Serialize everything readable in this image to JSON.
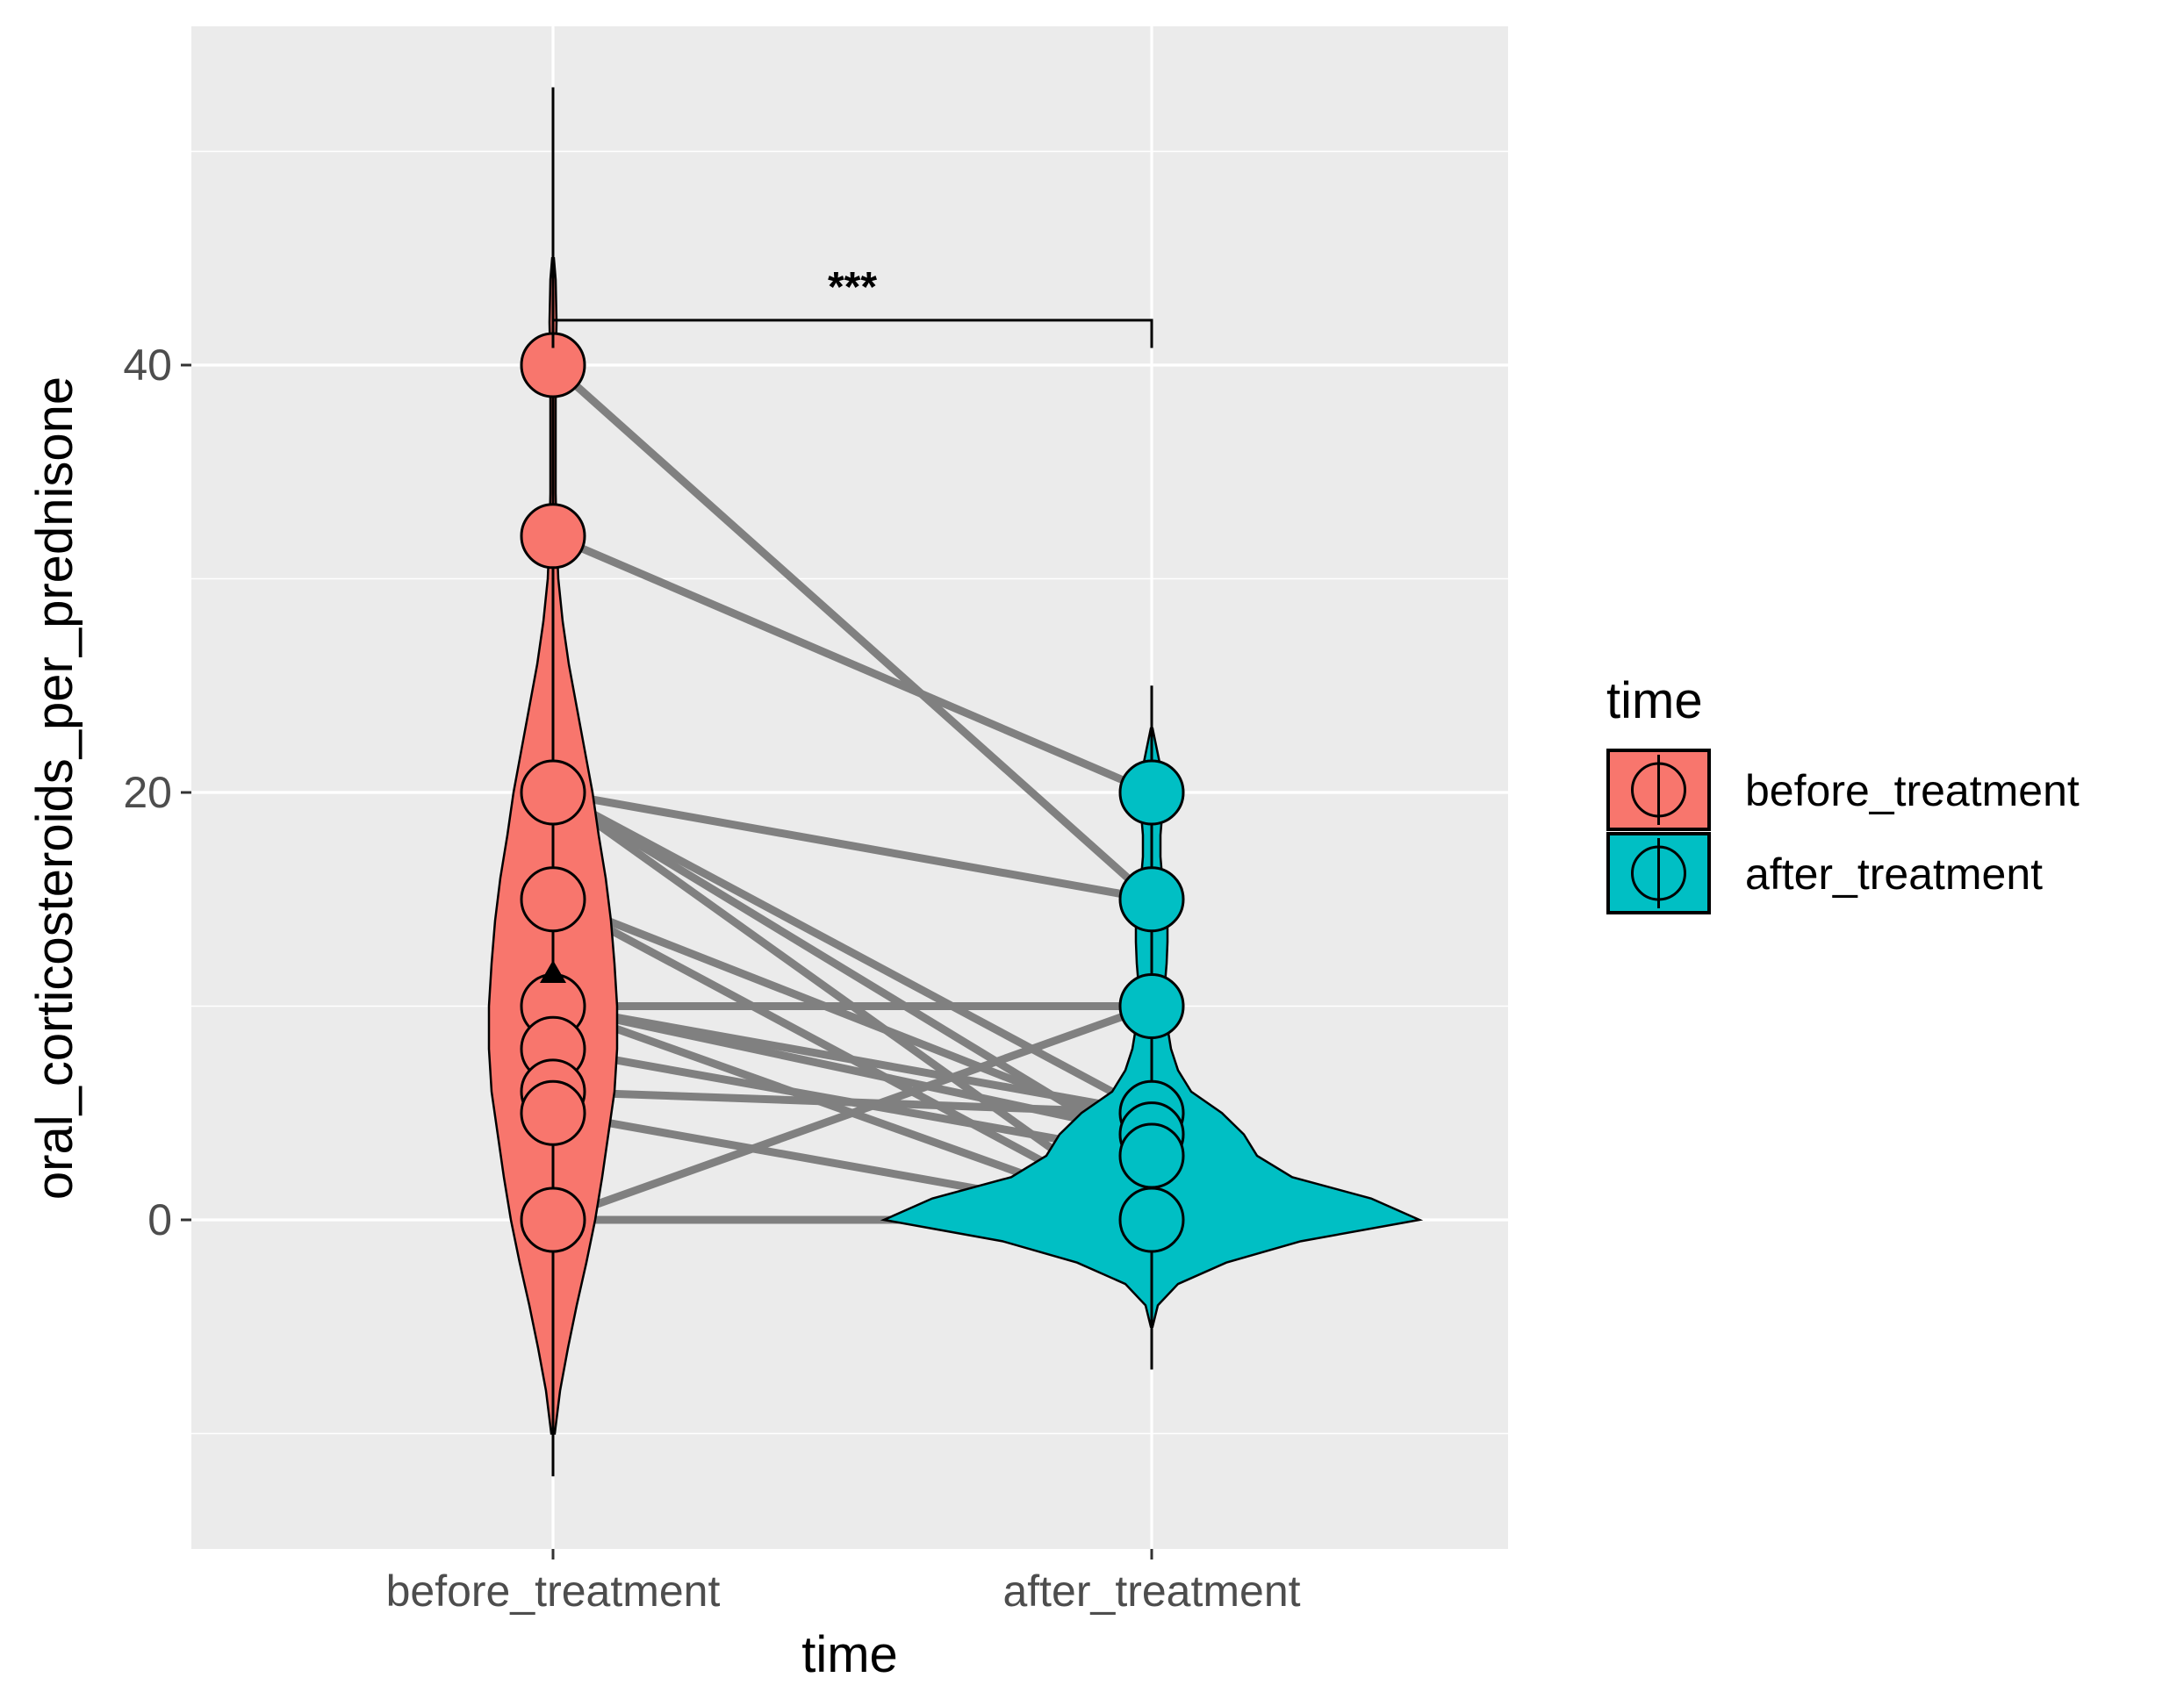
{
  "chart_data": {
    "type": "violin",
    "xlabel": "time",
    "ylabel": "oral_corticosteroids_per_prednisone",
    "categories": [
      "before_treatment",
      "after_treatment"
    ],
    "ylim": [
      -15.5,
      56
    ],
    "y_ticks": [
      0,
      20,
      40
    ],
    "y_tick_labels": [
      "0",
      "20",
      "40"
    ],
    "grid": true,
    "legend": {
      "title": "time",
      "placement": "right",
      "entries": [
        "before_treatment",
        "after_treatment"
      ]
    },
    "colors": {
      "before_treatment": "#F8766D",
      "after_treatment": "#00BFC4",
      "panel_background": "#EBEBEB",
      "gridline": "#FFFFFF",
      "pair_line": "#808080"
    },
    "series": [
      {
        "name": "before_treatment",
        "points": [
          40,
          32,
          20,
          15,
          10,
          8,
          6,
          5,
          0
        ],
        "mean": 11.5,
        "median": 10,
        "whisker": [
          -12,
          53
        ],
        "violin_range": [
          -10,
          45
        ]
      },
      {
        "name": "after_treatment",
        "points": [
          20,
          15,
          10,
          5,
          4,
          3,
          0
        ],
        "median": 0,
        "whisker": [
          -7,
          25
        ],
        "violin_range": [
          -5,
          23
        ]
      }
    ],
    "paired_lines": [
      [
        40,
        15
      ],
      [
        32,
        20
      ],
      [
        20,
        15
      ],
      [
        20,
        5
      ],
      [
        20,
        3
      ],
      [
        20,
        0
      ],
      [
        15,
        4
      ],
      [
        15,
        0
      ],
      [
        10,
        10
      ],
      [
        10,
        5
      ],
      [
        10,
        4
      ],
      [
        10,
        0
      ],
      [
        8,
        3
      ],
      [
        6,
        5
      ],
      [
        5,
        0
      ],
      [
        0,
        10
      ],
      [
        0,
        0
      ]
    ],
    "annotation": {
      "label": "***",
      "comparison": [
        "before_treatment",
        "after_treatment"
      ]
    }
  }
}
